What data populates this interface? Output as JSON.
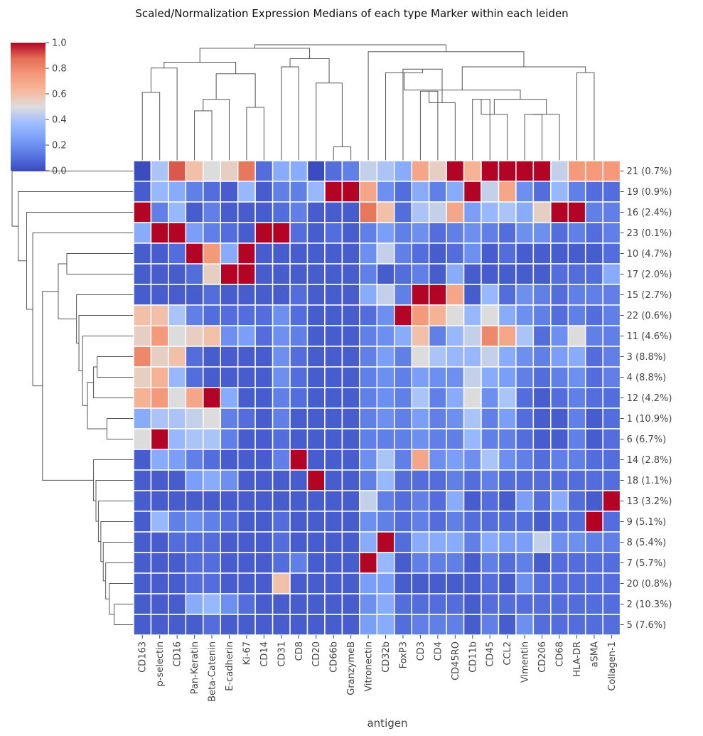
{
  "chart_data": {
    "type": "heatmap",
    "title": "Scaled/Normalization Expression Medians of each type Marker within each leiden",
    "xlabel": "antigen",
    "ylabel": "",
    "columns": [
      "CD163",
      "p-selectin",
      "CD16",
      "Pan-Keratin",
      "Beta-Catenin",
      "E-cadherin",
      "Ki-67",
      "CD14",
      "CD31",
      "CD8",
      "CD20",
      "CD66b",
      "GranzymeB",
      "Vitronectin",
      "CD32b",
      "FoxP3",
      "CD3",
      "CD4",
      "CD45RO",
      "CD11b",
      "CD45",
      "CCL2",
      "Vimentin",
      "CD206",
      "CD68",
      "HLA-DR",
      "aSMA",
      "Collagen-1"
    ],
    "rows": [
      "21 (0.7%)",
      "19 (0.9%)",
      "16 (2.4%)",
      "23 (0.1%)",
      "10 (4.7%)",
      "17 (2.0%)",
      "15 (2.7%)",
      "22 (0.6%)",
      "11 (4.6%)",
      "3 (8.8%)",
      "4 (8.8%)",
      "12 (4.2%)",
      "1 (10.9%)",
      "6 (6.7%)",
      "14 (2.8%)",
      "18 (1.1%)",
      "13 (3.2%)",
      "9 (5.1%)",
      "8 (5.4%)",
      "7 (5.7%)",
      "20 (0.8%)",
      "2 (10.3%)",
      "5 (7.6%)"
    ],
    "values": [
      [
        0.0,
        0.4,
        0.9,
        0.6,
        0.5,
        0.55,
        0.85,
        0.1,
        0.3,
        0.3,
        0.0,
        0.1,
        0.15,
        0.45,
        0.4,
        0.3,
        0.7,
        0.55,
        1.0,
        0.65,
        1.0,
        1.0,
        1.0,
        1.0,
        0.45,
        0.75,
        0.75,
        0.75
      ],
      [
        0.05,
        0.35,
        0.3,
        0.15,
        0.1,
        0.05,
        0.35,
        0.05,
        0.15,
        0.15,
        0.35,
        1.0,
        1.0,
        0.7,
        0.2,
        0.1,
        0.3,
        0.15,
        0.3,
        1.0,
        0.45,
        0.7,
        0.2,
        0.1,
        0.35,
        0.15,
        0.1,
        0.1
      ],
      [
        1.0,
        0.15,
        0.35,
        0.05,
        0.15,
        0.05,
        0.05,
        0.05,
        0.1,
        0.15,
        0.05,
        0.05,
        0.05,
        0.85,
        0.6,
        0.1,
        0.4,
        0.45,
        0.7,
        0.25,
        0.35,
        0.4,
        0.3,
        0.55,
        1.0,
        1.0,
        0.15,
        0.15
      ],
      [
        0.3,
        1.0,
        1.0,
        0.25,
        0.15,
        0.1,
        0.05,
        1.0,
        1.0,
        0.1,
        0.05,
        0.1,
        0.05,
        0.15,
        0.25,
        0.15,
        0.2,
        0.1,
        0.15,
        0.2,
        0.15,
        0.1,
        0.2,
        0.2,
        0.1,
        0.15,
        0.1,
        0.15
      ],
      [
        0.05,
        0.05,
        0.1,
        1.0,
        0.75,
        0.3,
        1.0,
        0.05,
        0.05,
        0.05,
        0.05,
        0.05,
        0.05,
        0.2,
        0.45,
        0.15,
        0.1,
        0.05,
        0.1,
        0.2,
        0.05,
        0.1,
        0.05,
        0.05,
        0.05,
        0.05,
        0.05,
        0.1
      ],
      [
        0.05,
        0.05,
        0.05,
        0.1,
        0.55,
        1.0,
        1.0,
        0.05,
        0.05,
        0.05,
        0.05,
        0.05,
        0.05,
        0.15,
        0.05,
        0.1,
        0.15,
        0.05,
        0.3,
        0.05,
        0.05,
        0.05,
        0.05,
        0.05,
        0.1,
        0.1,
        0.1,
        0.3
      ],
      [
        0.05,
        0.05,
        0.05,
        0.05,
        0.1,
        0.05,
        0.05,
        0.05,
        0.05,
        0.1,
        0.05,
        0.05,
        0.05,
        0.3,
        0.45,
        0.15,
        1.0,
        1.0,
        0.7,
        0.05,
        0.35,
        0.1,
        0.2,
        0.15,
        0.1,
        0.15,
        0.15,
        0.15
      ],
      [
        0.6,
        0.6,
        0.4,
        0.15,
        0.1,
        0.1,
        0.1,
        0.1,
        0.2,
        0.1,
        0.05,
        0.05,
        0.05,
        0.1,
        0.2,
        1.0,
        0.75,
        0.65,
        0.5,
        0.35,
        0.5,
        0.3,
        0.2,
        0.15,
        0.1,
        0.15,
        0.1,
        0.15
      ],
      [
        0.55,
        0.75,
        0.5,
        0.55,
        0.6,
        0.2,
        0.25,
        0.1,
        0.2,
        0.15,
        0.05,
        0.05,
        0.05,
        0.15,
        0.2,
        0.3,
        0.6,
        0.15,
        0.35,
        0.45,
        0.8,
        0.7,
        0.4,
        0.1,
        0.2,
        0.5,
        0.15,
        0.15
      ],
      [
        0.8,
        0.55,
        0.6,
        0.1,
        0.05,
        0.05,
        0.05,
        0.05,
        0.2,
        0.1,
        0.05,
        0.05,
        0.05,
        0.15,
        0.25,
        0.15,
        0.5,
        0.4,
        0.35,
        0.35,
        0.45,
        0.3,
        0.2,
        0.15,
        0.25,
        0.3,
        0.1,
        0.15
      ],
      [
        0.55,
        0.65,
        0.35,
        0.1,
        0.05,
        0.05,
        0.05,
        0.05,
        0.2,
        0.1,
        0.05,
        0.05,
        0.05,
        0.15,
        0.2,
        0.15,
        0.25,
        0.2,
        0.2,
        0.45,
        0.3,
        0.25,
        0.15,
        0.1,
        0.15,
        0.2,
        0.1,
        0.15
      ],
      [
        0.65,
        0.75,
        0.5,
        0.7,
        1.0,
        0.3,
        0.05,
        0.05,
        0.15,
        0.1,
        0.05,
        0.05,
        0.05,
        0.15,
        0.2,
        0.15,
        0.4,
        0.15,
        0.3,
        0.5,
        0.2,
        0.4,
        0.1,
        0.05,
        0.1,
        0.15,
        0.1,
        0.1
      ],
      [
        0.3,
        0.4,
        0.4,
        0.45,
        0.5,
        0.15,
        0.1,
        0.05,
        0.15,
        0.05,
        0.05,
        0.05,
        0.05,
        0.15,
        0.2,
        0.15,
        0.25,
        0.15,
        0.2,
        0.4,
        0.15,
        0.25,
        0.1,
        0.05,
        0.05,
        0.15,
        0.05,
        0.1
      ],
      [
        0.5,
        1.0,
        0.35,
        0.4,
        0.4,
        0.15,
        0.05,
        0.05,
        0.1,
        0.05,
        0.05,
        0.05,
        0.05,
        0.15,
        0.15,
        0.15,
        0.2,
        0.15,
        0.15,
        0.35,
        0.15,
        0.15,
        0.1,
        0.05,
        0.05,
        0.15,
        0.05,
        0.1
      ],
      [
        0.05,
        0.3,
        0.25,
        0.15,
        0.1,
        0.05,
        0.05,
        0.05,
        0.15,
        1.0,
        0.05,
        0.05,
        0.05,
        0.2,
        0.4,
        0.15,
        0.7,
        0.2,
        0.25,
        0.2,
        0.4,
        0.2,
        0.15,
        0.1,
        0.15,
        0.15,
        0.1,
        0.1
      ],
      [
        0.05,
        0.05,
        0.05,
        0.25,
        0.3,
        0.2,
        0.05,
        0.05,
        0.05,
        0.05,
        1.0,
        0.05,
        0.05,
        0.15,
        0.35,
        0.1,
        0.1,
        0.1,
        0.15,
        0.1,
        0.15,
        0.1,
        0.1,
        0.1,
        0.1,
        0.1,
        0.1,
        0.1
      ],
      [
        0.05,
        0.05,
        0.05,
        0.05,
        0.05,
        0.05,
        0.05,
        0.05,
        0.05,
        0.05,
        0.05,
        0.05,
        0.05,
        0.45,
        0.15,
        0.1,
        0.15,
        0.1,
        0.3,
        0.05,
        0.1,
        0.05,
        0.25,
        0.1,
        0.3,
        0.1,
        0.05,
        1.0
      ],
      [
        0.05,
        0.35,
        0.15,
        0.2,
        0.15,
        0.1,
        0.05,
        0.05,
        0.1,
        0.05,
        0.05,
        0.05,
        0.05,
        0.2,
        0.15,
        0.1,
        0.15,
        0.1,
        0.15,
        0.1,
        0.1,
        0.1,
        0.1,
        0.05,
        0.1,
        0.1,
        1.0,
        0.1
      ],
      [
        0.05,
        0.05,
        0.1,
        0.1,
        0.1,
        0.05,
        0.05,
        0.05,
        0.1,
        0.05,
        0.05,
        0.05,
        0.05,
        0.3,
        1.0,
        0.1,
        0.3,
        0.3,
        0.3,
        0.15,
        0.3,
        0.25,
        0.25,
        0.45,
        0.2,
        0.2,
        0.15,
        0.15
      ],
      [
        0.05,
        0.05,
        0.05,
        0.1,
        0.1,
        0.05,
        0.05,
        0.05,
        0.1,
        0.15,
        0.05,
        0.05,
        0.05,
        1.0,
        0.35,
        0.05,
        0.15,
        0.15,
        0.15,
        0.05,
        0.15,
        0.1,
        0.15,
        0.05,
        0.1,
        0.1,
        0.1,
        0.1
      ],
      [
        0.05,
        0.05,
        0.05,
        0.1,
        0.1,
        0.05,
        0.05,
        0.05,
        0.6,
        0.05,
        0.05,
        0.05,
        0.05,
        0.25,
        0.25,
        0.05,
        0.05,
        0.05,
        0.05,
        0.05,
        0.1,
        0.05,
        0.2,
        0.1,
        0.1,
        0.1,
        0.1,
        0.1
      ],
      [
        0.05,
        0.05,
        0.05,
        0.3,
        0.35,
        0.2,
        0.1,
        0.05,
        0.05,
        0.05,
        0.05,
        0.05,
        0.05,
        0.2,
        0.3,
        0.1,
        0.1,
        0.1,
        0.1,
        0.05,
        0.1,
        0.1,
        0.1,
        0.1,
        0.1,
        0.1,
        0.1,
        0.1
      ],
      [
        0.05,
        0.05,
        0.05,
        0.05,
        0.1,
        0.05,
        0.05,
        0.05,
        0.05,
        0.05,
        0.05,
        0.05,
        0.05,
        0.25,
        0.3,
        0.1,
        0.15,
        0.15,
        0.15,
        0.05,
        0.15,
        0.05,
        0.2,
        0.1,
        0.1,
        0.1,
        0.1,
        0.1
      ]
    ],
    "colorbar": {
      "colormap": "coolwarm",
      "range": [
        0.0,
        1.0
      ],
      "ticks": [
        "0.0",
        "0.2",
        "0.4",
        "0.6",
        "0.8",
        "1.0"
      ]
    },
    "dendrograms": {
      "rows": true,
      "columns": true,
      "color": "#555555"
    },
    "grid": false
  }
}
